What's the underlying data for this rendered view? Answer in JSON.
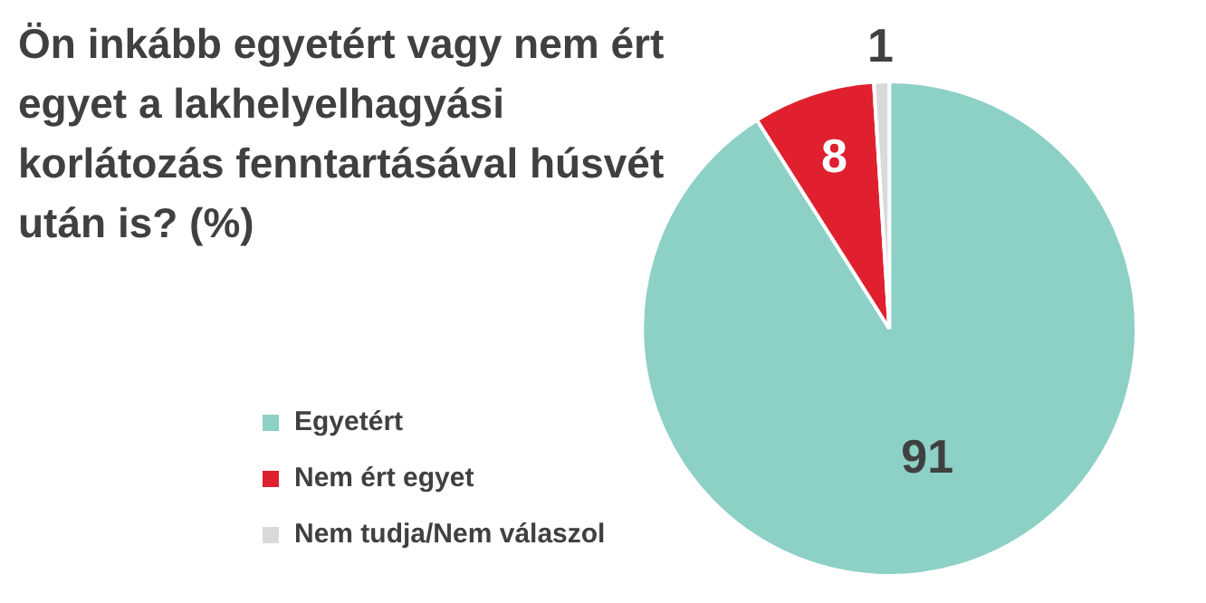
{
  "chart_data": {
    "type": "pie",
    "title": "Ön inkább egyetért vagy nem ért egyet a lakhelyelhagyási korlátozás fenntartásával húsvét után is? (%)",
    "categories": [
      "Egyetért",
      "Nem ért egyet",
      "Nem tudja/Nem válaszol"
    ],
    "values": [
      91,
      8,
      1
    ],
    "colors": [
      "#8dd0c6",
      "#e0202f",
      "#d9d9d9"
    ],
    "data_labels": true,
    "legend": "left"
  }
}
